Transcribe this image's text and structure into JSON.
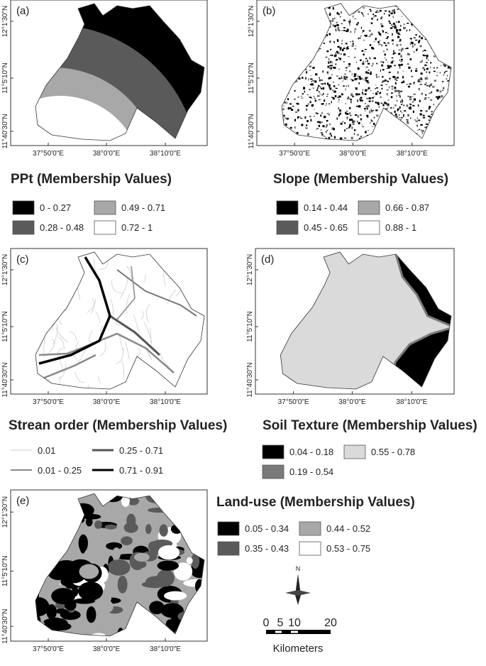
{
  "axes": {
    "latitude_labels": [
      "12°1'30\"N",
      "11°5'10\"N",
      "11°40'30\"N"
    ],
    "longitude_labels": [
      "37°50'0\"E",
      "38°0'0\"E",
      "38°10'0\"E"
    ]
  },
  "panels": [
    {
      "label": "(a)",
      "title": "PPt (Membership Values)",
      "legend": [
        {
          "label": "0 - 0.27",
          "color": "#000000"
        },
        {
          "label": "0.49 - 0.71",
          "color": "#a8a8a8"
        },
        {
          "label": "0.28 - 0.48",
          "color": "#5a5a5a"
        },
        {
          "label": "0.72 - 1",
          "color": "#ffffff"
        }
      ]
    },
    {
      "label": "(b)",
      "title": "Slope (Membership Values)",
      "legend": [
        {
          "label": "0.14 - 0.44",
          "color": "#000000"
        },
        {
          "label": "0.66 - 0.87",
          "color": "#a8a8a8"
        },
        {
          "label": "0.45 - 0.65",
          "color": "#5a5a5a"
        },
        {
          "label": "0.88 - 1",
          "color": "#ffffff"
        }
      ]
    },
    {
      "label": "(c)",
      "title": "Strean order (Membership Values)",
      "legend": [
        {
          "label": "0.01",
          "color": "#cccccc"
        },
        {
          "label": "0.25 - 0.71",
          "color": "#555555"
        },
        {
          "label": "0.01 - 0.25",
          "color": "#8a8a8a"
        },
        {
          "label": "0.71 - 0.91",
          "color": "#000000"
        }
      ]
    },
    {
      "label": "(d)",
      "title": "Soil Texture (Membership Values)",
      "legend": [
        {
          "label": "0.04 - 0.18",
          "color": "#000000"
        },
        {
          "label": "0.55 - 0.78",
          "color": "#dadada"
        },
        {
          "label": "0.19 - 0.54",
          "color": "#7a7a7a"
        }
      ]
    },
    {
      "label": "(e)",
      "title": "Land-use (Membership Values)",
      "legend": [
        {
          "label": "0.05 - 0.34",
          "color": "#000000"
        },
        {
          "label": "0.44 - 0.52",
          "color": "#a8a8a8"
        },
        {
          "label": "0.35 - 0.43",
          "color": "#5a5a5a"
        },
        {
          "label": "0.53 - 0.75",
          "color": "#ffffff"
        }
      ]
    }
  ],
  "north_arrow": "N",
  "scale_bar": {
    "ticks": [
      "0",
      "5",
      "10",
      "20"
    ],
    "unit": "Kilometers"
  }
}
